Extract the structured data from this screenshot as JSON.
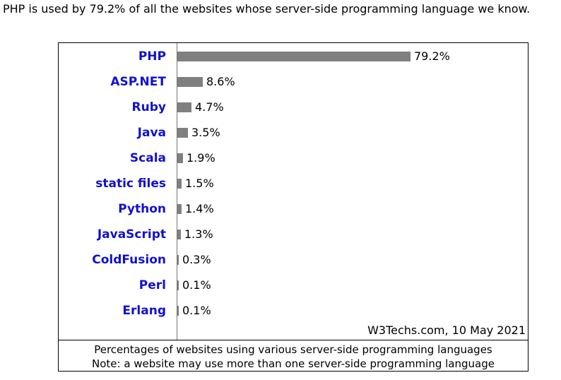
{
  "intro_text": "PHP is used by 79.2% of all the websites whose server-side programming language we know.",
  "colors": {
    "bar": "#808080",
    "label": "#1111cc",
    "axis": "#777777"
  },
  "chart_data": {
    "type": "bar",
    "orientation": "horizontal",
    "categories": [
      "PHP",
      "ASP.NET",
      "Ruby",
      "Java",
      "Scala",
      "static files",
      "Python",
      "JavaScript",
      "ColdFusion",
      "Perl",
      "Erlang"
    ],
    "values": [
      79.2,
      8.6,
      4.7,
      3.5,
      1.9,
      1.5,
      1.4,
      1.3,
      0.3,
      0.1,
      0.1
    ],
    "value_labels": [
      "79.2%",
      "8.6%",
      "4.7%",
      "3.5%",
      "1.9%",
      "1.5%",
      "1.4%",
      "1.3%",
      "0.3%",
      "0.1%",
      "0.1%"
    ],
    "xlim": [
      0,
      100
    ],
    "unit": "%",
    "source": "W3Techs.com, 10 May 2021",
    "caption_line1": "Percentages of websites using various server-side programming languages",
    "caption_line2": "Note: a website may use more than one server-side programming language",
    "grid": false
  }
}
